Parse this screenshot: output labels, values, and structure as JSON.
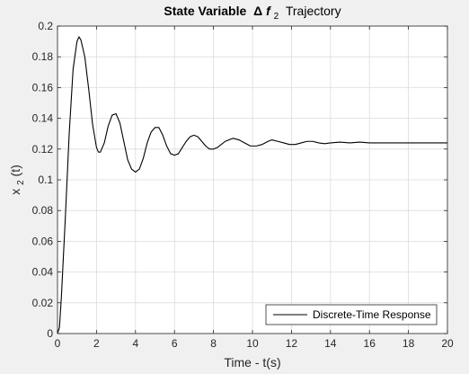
{
  "colors": {
    "figure_background": "#f0f0f0",
    "plot_background": "#ffffff",
    "grid": "#dcdcdc",
    "axis": "#262626",
    "line": "#000000"
  },
  "chart_data": {
    "type": "line",
    "title": {
      "bold": "State Variable",
      "symbol": "Δ",
      "italic_bold": "f",
      "subscript": "2",
      "rest": "Trajectory"
    },
    "xlabel": "Time - t(s)",
    "ylabel": {
      "base": "x",
      "subscript": "2",
      "suffix": "(t)"
    },
    "xlim": [
      0,
      20
    ],
    "ylim": [
      0,
      0.2
    ],
    "xticks": [
      "0",
      "2",
      "4",
      "6",
      "8",
      "10",
      "12",
      "14",
      "16",
      "18",
      "20"
    ],
    "yticks": [
      "0",
      "0.02",
      "0.04",
      "0.06",
      "0.08",
      "0.1",
      "0.12",
      "0.14",
      "0.16",
      "0.18",
      "0.2"
    ],
    "grid": true,
    "legend_position": "bottom-right",
    "series": [
      {
        "name": "Discrete-Time Response",
        "x": [
          0,
          0.1,
          0.2,
          0.4,
          0.6,
          0.8,
          1.0,
          1.1,
          1.2,
          1.4,
          1.6,
          1.8,
          2.0,
          2.1,
          2.2,
          2.4,
          2.6,
          2.8,
          3.0,
          3.2,
          3.4,
          3.6,
          3.8,
          4.0,
          4.1,
          4.2,
          4.4,
          4.6,
          4.8,
          5.0,
          5.2,
          5.4,
          5.6,
          5.8,
          6.0,
          6.2,
          6.4,
          6.6,
          6.8,
          7.0,
          7.2,
          7.4,
          7.6,
          7.8,
          8.0,
          8.2,
          8.4,
          8.6,
          8.8,
          9.0,
          9.3,
          9.6,
          9.9,
          10.2,
          10.5,
          10.8,
          11.0,
          11.3,
          11.6,
          11.9,
          12.2,
          12.5,
          12.8,
          13.1,
          13.4,
          13.7,
          14.0,
          14.5,
          15.0,
          15.5,
          16.0,
          16.5,
          17.0,
          18.0,
          19.0,
          20.0
        ],
        "y": [
          0,
          0.004,
          0.024,
          0.075,
          0.13,
          0.172,
          0.19,
          0.193,
          0.191,
          0.18,
          0.159,
          0.136,
          0.121,
          0.118,
          0.118,
          0.124,
          0.135,
          0.142,
          0.143,
          0.137,
          0.125,
          0.113,
          0.107,
          0.105,
          0.106,
          0.107,
          0.114,
          0.124,
          0.131,
          0.134,
          0.134,
          0.129,
          0.122,
          0.117,
          0.116,
          0.117,
          0.121,
          0.125,
          0.128,
          0.129,
          0.128,
          0.125,
          0.122,
          0.12,
          0.12,
          0.121,
          0.123,
          0.125,
          0.126,
          0.127,
          0.126,
          0.124,
          0.122,
          0.122,
          0.123,
          0.125,
          0.126,
          0.125,
          0.124,
          0.123,
          0.123,
          0.124,
          0.125,
          0.125,
          0.124,
          0.1235,
          0.124,
          0.1245,
          0.124,
          0.1245,
          0.124,
          0.124,
          0.124,
          0.124,
          0.124,
          0.124
        ]
      }
    ]
  }
}
